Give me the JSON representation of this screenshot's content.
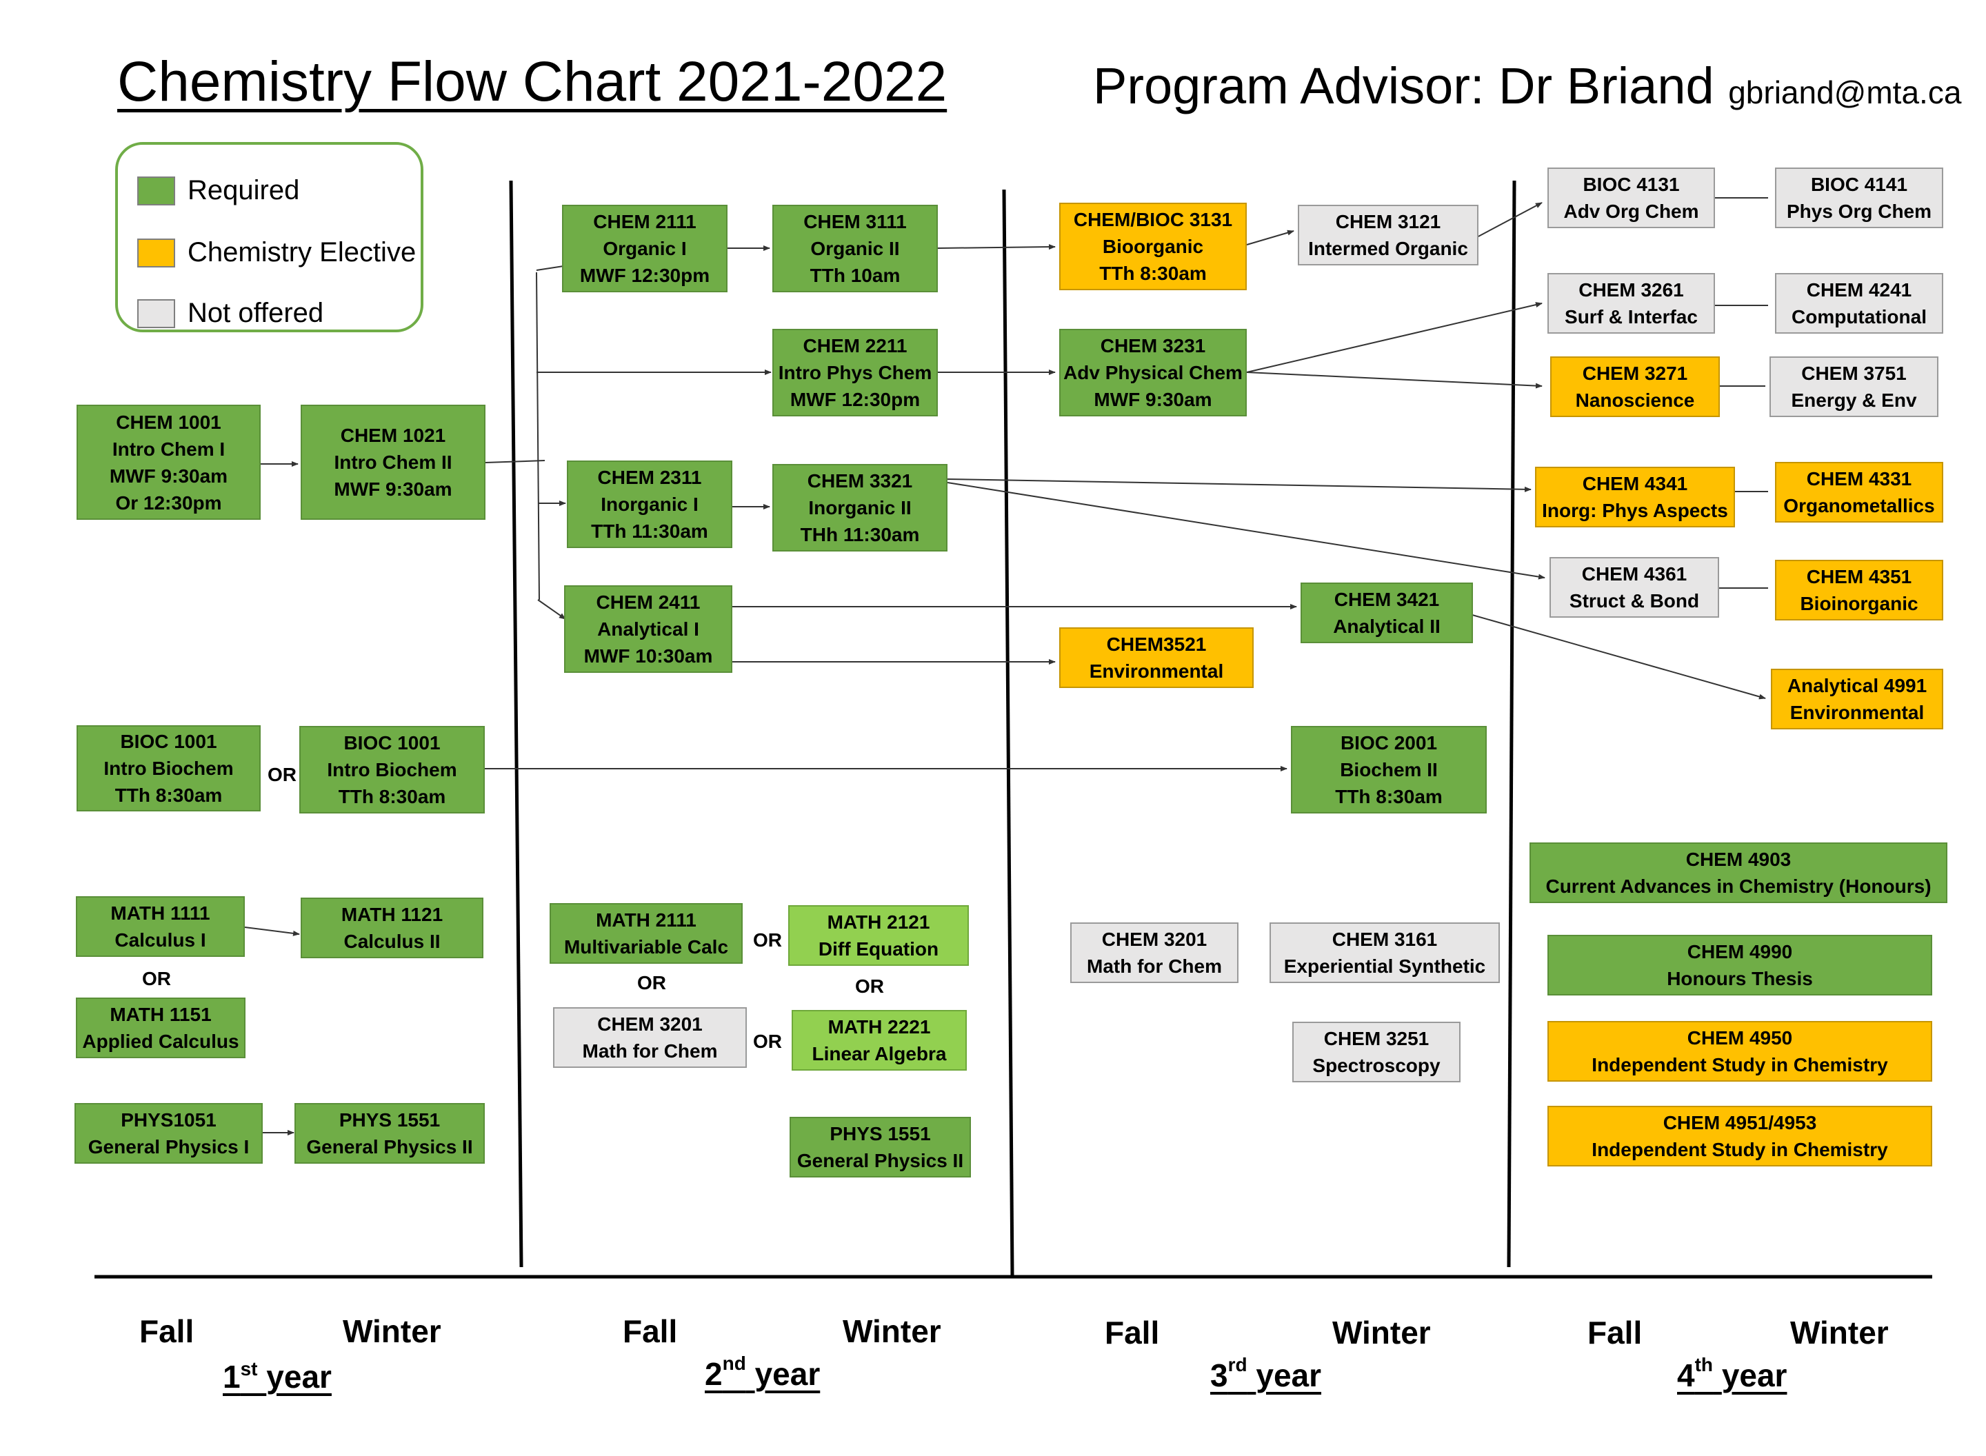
{
  "header": {
    "title": "Chemistry Flow Chart 2021-2022",
    "advisor": "Program Advisor: Dr Briand",
    "email": "gbriand@mta.ca"
  },
  "legend": {
    "items": [
      {
        "label": "Required",
        "color": "#70ad47"
      },
      {
        "label": "Chemistry Elective",
        "color": "#ffc000"
      },
      {
        "label": "Not offered",
        "color": "#e7e6e6"
      }
    ]
  },
  "colors": {
    "required": "#70ad47",
    "required_light": "#92d050",
    "elective": "#ffc000",
    "not_offered": "#e7e6e6"
  },
  "courses": {
    "chem1001": [
      "CHEM 1001",
      "Intro Chem I",
      "MWF 9:30am",
      "Or 12:30pm"
    ],
    "chem1021": [
      "CHEM 1021",
      "Intro Chem II",
      "MWF 9:30am"
    ],
    "bioc1001a": [
      "BIOC 1001",
      "Intro Biochem",
      "TTh 8:30am"
    ],
    "bioc1001b": [
      "BIOC 1001",
      "Intro Biochem",
      "TTh 8:30am"
    ],
    "math1111": [
      "MATH 1111",
      "Calculus I"
    ],
    "math1121": [
      "MATH 1121",
      "Calculus II"
    ],
    "math1151": [
      "MATH 1151",
      "Applied Calculus"
    ],
    "phys1051": [
      "PHYS1051",
      "General Physics I"
    ],
    "phys1551a": [
      "PHYS 1551",
      "General Physics II"
    ],
    "chem2111": [
      "CHEM 2111",
      "Organic I",
      "MWF 12:30pm"
    ],
    "chem3111": [
      "CHEM 3111",
      "Organic II",
      "TTh 10am"
    ],
    "chem2211": [
      "CHEM 2211",
      "Intro Phys Chem",
      "MWF 12:30pm"
    ],
    "chem2311": [
      "CHEM 2311",
      "Inorganic I",
      "TTh 11:30am"
    ],
    "chem3321": [
      "CHEM 3321",
      "Inorganic II",
      "THh 11:30am"
    ],
    "chem2411": [
      "CHEM 2411",
      "Analytical I",
      "MWF 10:30am"
    ],
    "math2111": [
      "MATH 2111",
      "Multivariable Calc"
    ],
    "math2121": [
      "MATH 2121",
      "Diff Equation"
    ],
    "chem3201a": [
      "CHEM 3201",
      "Math for Chem"
    ],
    "math2221": [
      "MATH 2221",
      "Linear Algebra"
    ],
    "phys1551b": [
      "PHYS 1551",
      "General Physics II"
    ],
    "chembioc3131": [
      "CHEM/BIOC 3131",
      "Bioorganic",
      "TTh 8:30am"
    ],
    "chem3121": [
      "CHEM 3121",
      "Intermed Organic"
    ],
    "chem3231": [
      "CHEM 3231",
      "Adv Physical Chem",
      "MWF 9:30am"
    ],
    "chem3521": [
      "CHEM3521",
      "Environmental"
    ],
    "chem3421": [
      "CHEM 3421",
      "Analytical II"
    ],
    "bioc2001": [
      "BIOC 2001",
      "Biochem II",
      "TTh 8:30am"
    ],
    "chem3201b": [
      "CHEM 3201",
      "Math for Chem"
    ],
    "chem3161": [
      "CHEM 3161",
      "Experiential Synthetic"
    ],
    "chem3251": [
      "CHEM 3251",
      "Spectroscopy"
    ],
    "bioc4131": [
      "BIOC 4131",
      "Adv Org Chem"
    ],
    "bioc4141": [
      "BIOC 4141",
      "Phys Org Chem"
    ],
    "chem3261": [
      "CHEM 3261",
      "Surf & Interfac"
    ],
    "chem4241": [
      "CHEM 4241",
      "Computational"
    ],
    "chem3271": [
      "CHEM 3271",
      "Nanoscience"
    ],
    "chem3751": [
      "CHEM 3751",
      "Energy & Env"
    ],
    "chem4341": [
      "CHEM 4341",
      "Inorg: Phys Aspects"
    ],
    "chem4331": [
      "CHEM 4331",
      "Organometallics"
    ],
    "chem4361": [
      "CHEM 4361",
      "Struct & Bond"
    ],
    "chem4351": [
      "CHEM 4351",
      "Bioinorganic"
    ],
    "analytical4991": [
      "Analytical 4991",
      "Environmental"
    ],
    "chem4903": [
      "CHEM 4903",
      "Current Advances in Chemistry (Honours)"
    ],
    "chem4990": [
      "CHEM 4990",
      "Honours Thesis"
    ],
    "chem4950": [
      "CHEM 4950",
      "Independent Study in Chemistry"
    ],
    "chem49514953": [
      "CHEM 4951/4953",
      "Independent Study in Chemistry"
    ]
  },
  "or_label": "OR",
  "footer": {
    "fall": "Fall",
    "winter": "Winter",
    "years": [
      {
        "num": "1",
        "sup": "st",
        "word": "year"
      },
      {
        "num": "2",
        "sup": "nd",
        "word": "year"
      },
      {
        "num": "3",
        "sup": "rd",
        "word": "year"
      },
      {
        "num": "4",
        "sup": "th",
        "word": "year"
      }
    ]
  }
}
